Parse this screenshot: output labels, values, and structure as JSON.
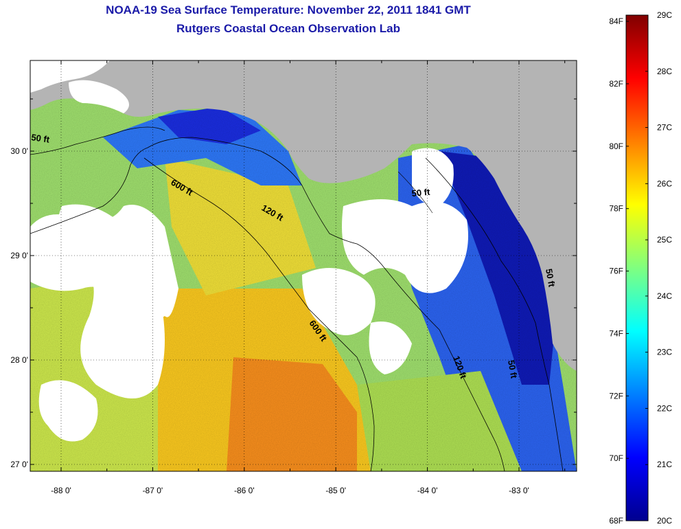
{
  "title": {
    "line1": "NOAA-19 Sea Surface Temperature:  November 22, 2011 1841 GMT",
    "line2": "Rutgers Coastal Ocean Observation Lab"
  },
  "map": {
    "lat_labels": [
      "30 0'",
      "29 0'",
      "28 0'",
      "27 0'"
    ],
    "lon_labels": [
      "-88 0'",
      "-87 0'",
      "-86 0'",
      "-85 0'",
      "-84 0'",
      "-83 0'"
    ],
    "lat_values": [
      30,
      29,
      28,
      27
    ],
    "lon_values": [
      -88,
      -87,
      -86,
      -85,
      -84,
      -83
    ],
    "contour_labels": [
      {
        "text": "50 ft"
      },
      {
        "text": "600 ft"
      },
      {
        "text": "120 ft"
      },
      {
        "text": "50 ft"
      },
      {
        "text": "600 ft"
      },
      {
        "text": "120 ft"
      },
      {
        "text": "50 ft"
      },
      {
        "text": "50 ft"
      }
    ],
    "colors": {
      "land": "#b4b4b4",
      "cloud": "#ffffff",
      "grid": "#000000"
    }
  },
  "colorbar": {
    "fahrenheit": [
      "84F",
      "82F",
      "80F",
      "78F",
      "76F",
      "74F",
      "72F",
      "70F",
      "68F"
    ],
    "celsius": [
      "29C",
      "28C",
      "27C",
      "26C",
      "25C",
      "24C",
      "23C",
      "22C",
      "21C",
      "20C"
    ],
    "range_c": [
      20,
      29
    ],
    "range_f": [
      68,
      84.2
    ],
    "colormap": "jet"
  }
}
